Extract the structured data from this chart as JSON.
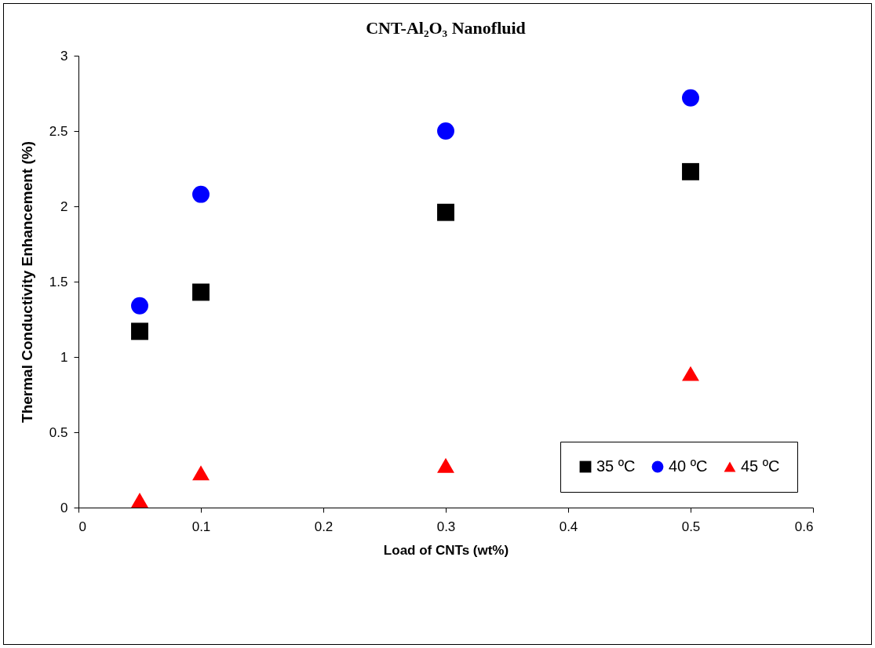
{
  "chart_data": {
    "type": "scatter",
    "title": "CNT-Al₂O₃ Nanofluid",
    "xlabel": "Load of CNTs (wt%)",
    "ylabel": "Thermal Conductivity Enhancement (%)",
    "x": [
      0.05,
      0.1,
      0.3,
      0.5
    ],
    "series": [
      {
        "name": "35 ºC",
        "color": "#000000",
        "marker": "square",
        "values": [
          1.17,
          1.43,
          1.96,
          2.23
        ]
      },
      {
        "name": "40 ºC",
        "color": "#0000ff",
        "marker": "circle",
        "values": [
          1.34,
          2.08,
          2.5,
          2.72
        ]
      },
      {
        "name": "45 ºC",
        "color": "#ff0000",
        "marker": "triangle",
        "values": [
          0.05,
          0.23,
          0.28,
          0.89
        ]
      }
    ],
    "xlim": [
      0,
      0.6
    ],
    "xticks": [
      0,
      0.1,
      0.2,
      0.3,
      0.4,
      0.5,
      0.6
    ],
    "ylim": [
      0,
      3
    ],
    "yticks": [
      0,
      0.5,
      1,
      1.5,
      2,
      2.5,
      3
    ],
    "grid": false,
    "legend": "bottom right"
  }
}
